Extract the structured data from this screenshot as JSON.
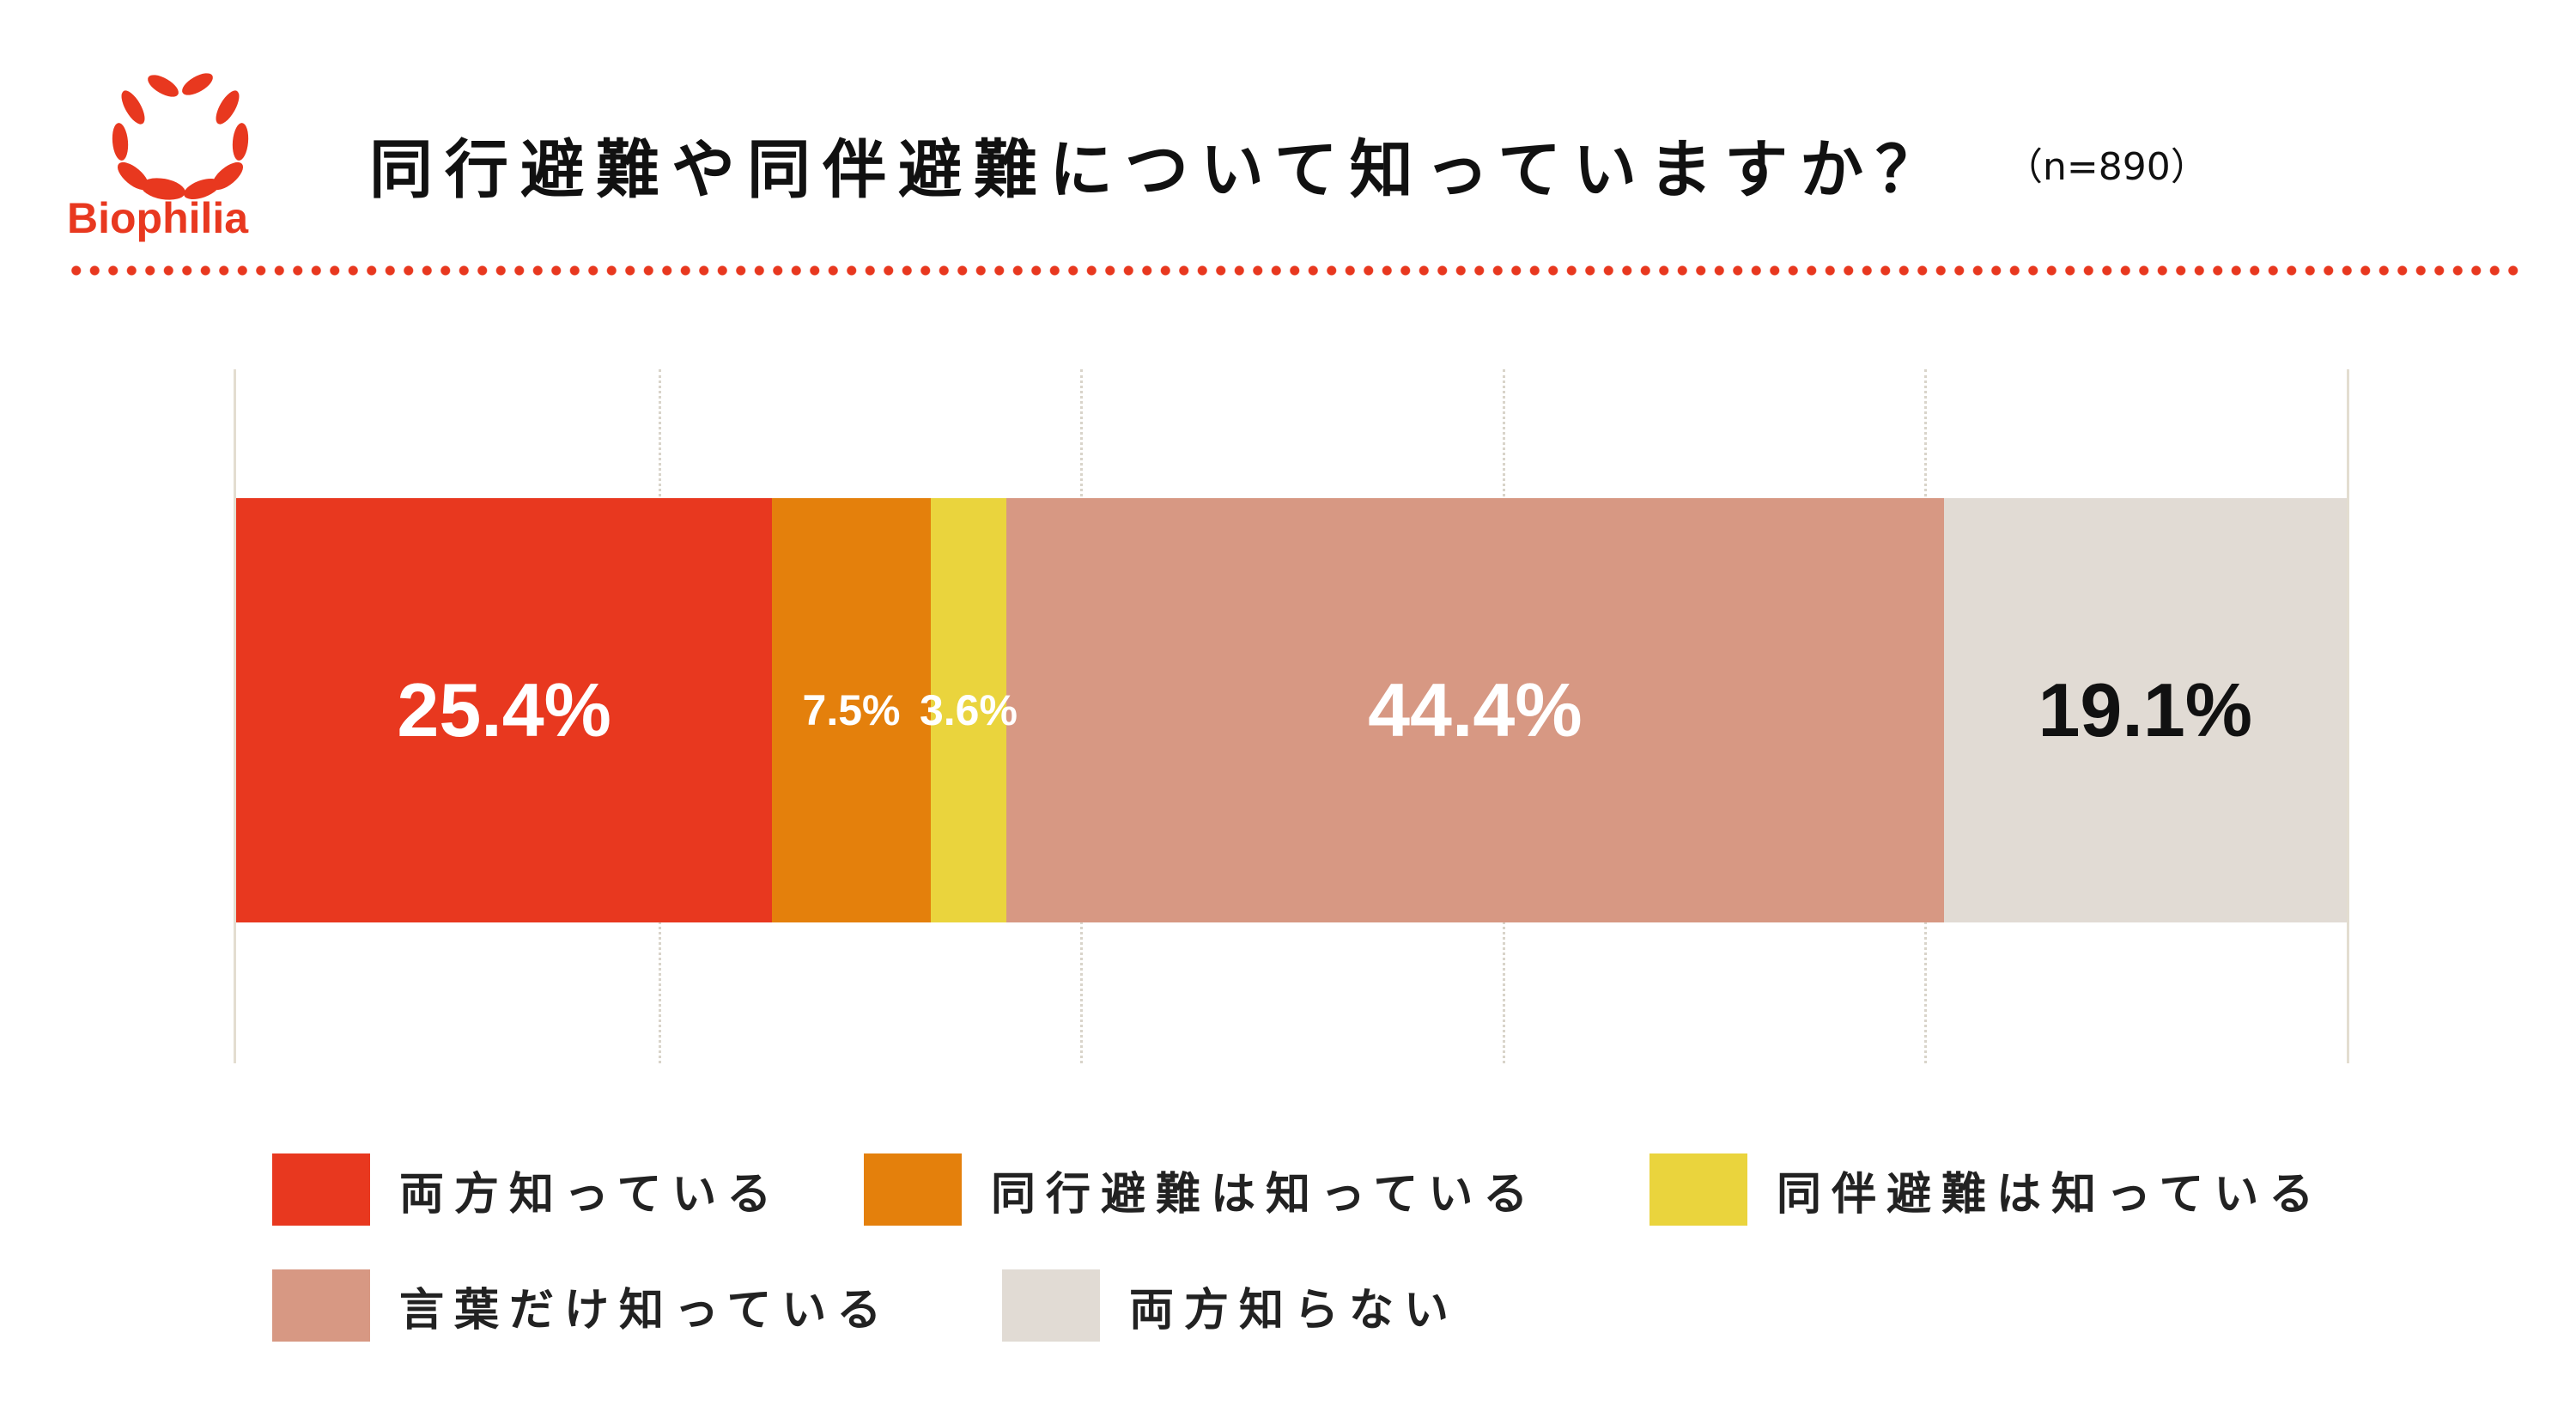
{
  "brand": {
    "name": "Biophilia",
    "color": "#e8381f"
  },
  "header": {
    "title": "同行避難や同伴避難について知っていますか？",
    "sample": "（n=890）"
  },
  "chart_data": {
    "type": "bar",
    "orientation": "horizontal-stacked-100",
    "title": "同行避難や同伴避難について知っていますか？",
    "xlim": [
      0,
      100
    ],
    "grid": true,
    "legend": "bottom",
    "series": [
      {
        "name": "両方知っている",
        "value": 25.4,
        "label": "25.4%",
        "color": "#e8381f",
        "text_color": "#ffffff"
      },
      {
        "name": "同行避難は知っている",
        "value": 7.5,
        "label": "7.5%",
        "color": "#e4800c",
        "text_color": "#ffffff"
      },
      {
        "name": "同伴避難は知っている",
        "value": 3.6,
        "label": "3.6%",
        "color": "#ead43d",
        "text_color": "#ffffff"
      },
      {
        "name": "言葉だけ知っている",
        "value": 44.4,
        "label": "44.4%",
        "color": "#d79883",
        "text_color": "#ffffff"
      },
      {
        "name": "両方知らない",
        "value": 19.1,
        "label": "19.1%",
        "color": "#e1dbd4",
        "text_color": "#111111"
      }
    ]
  }
}
